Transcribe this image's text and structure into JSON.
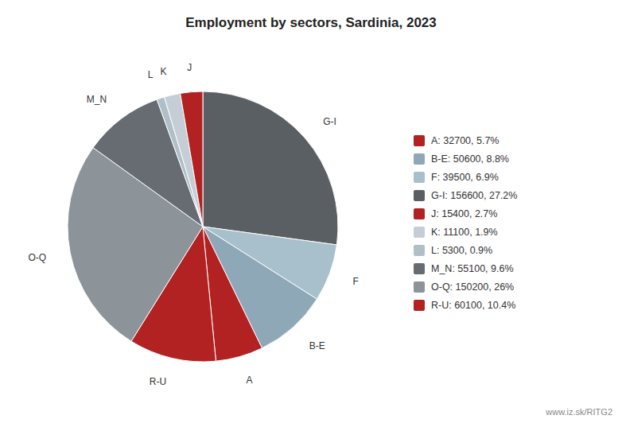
{
  "chart_data": {
    "type": "pie",
    "title": "Employment by sectors, Sardinia, 2023",
    "categories": [
      "G-I",
      "F",
      "B-E",
      "A",
      "R-U",
      "O-Q",
      "M_N",
      "L",
      "K",
      "J"
    ],
    "values": [
      156600,
      39500,
      50600,
      32700,
      60100,
      150200,
      55100,
      5300,
      11100,
      15400
    ],
    "colors": [
      "#5a5f63",
      "#a8bfcc",
      "#8fa8b8",
      "#b22222",
      "#b22222",
      "#8c9499",
      "#666c72",
      "#b0bec8",
      "#c5ced6",
      "#b22222"
    ],
    "legend": "right",
    "legend_labels": [
      "A: 32700, 5.7%",
      "B-E: 50600, 8.8%",
      "F: 39500, 6.9%",
      "G-I: 156600, 27.2%",
      "J: 15400, 2.7%",
      "K: 11100, 1.9%",
      "L: 5300, 0.9%",
      "M_N: 55100, 9.6%",
      "O-Q: 150200, 26%",
      "R-U: 60100, 10.4%"
    ],
    "legend_colors": [
      "#b22222",
      "#8fa8b8",
      "#a8bfcc",
      "#5a5f63",
      "#b22222",
      "#c5ced6",
      "#b0bec8",
      "#666c72",
      "#8c9499",
      "#b22222"
    ],
    "annotations": [
      "www.iz.sk/RITG2"
    ]
  }
}
